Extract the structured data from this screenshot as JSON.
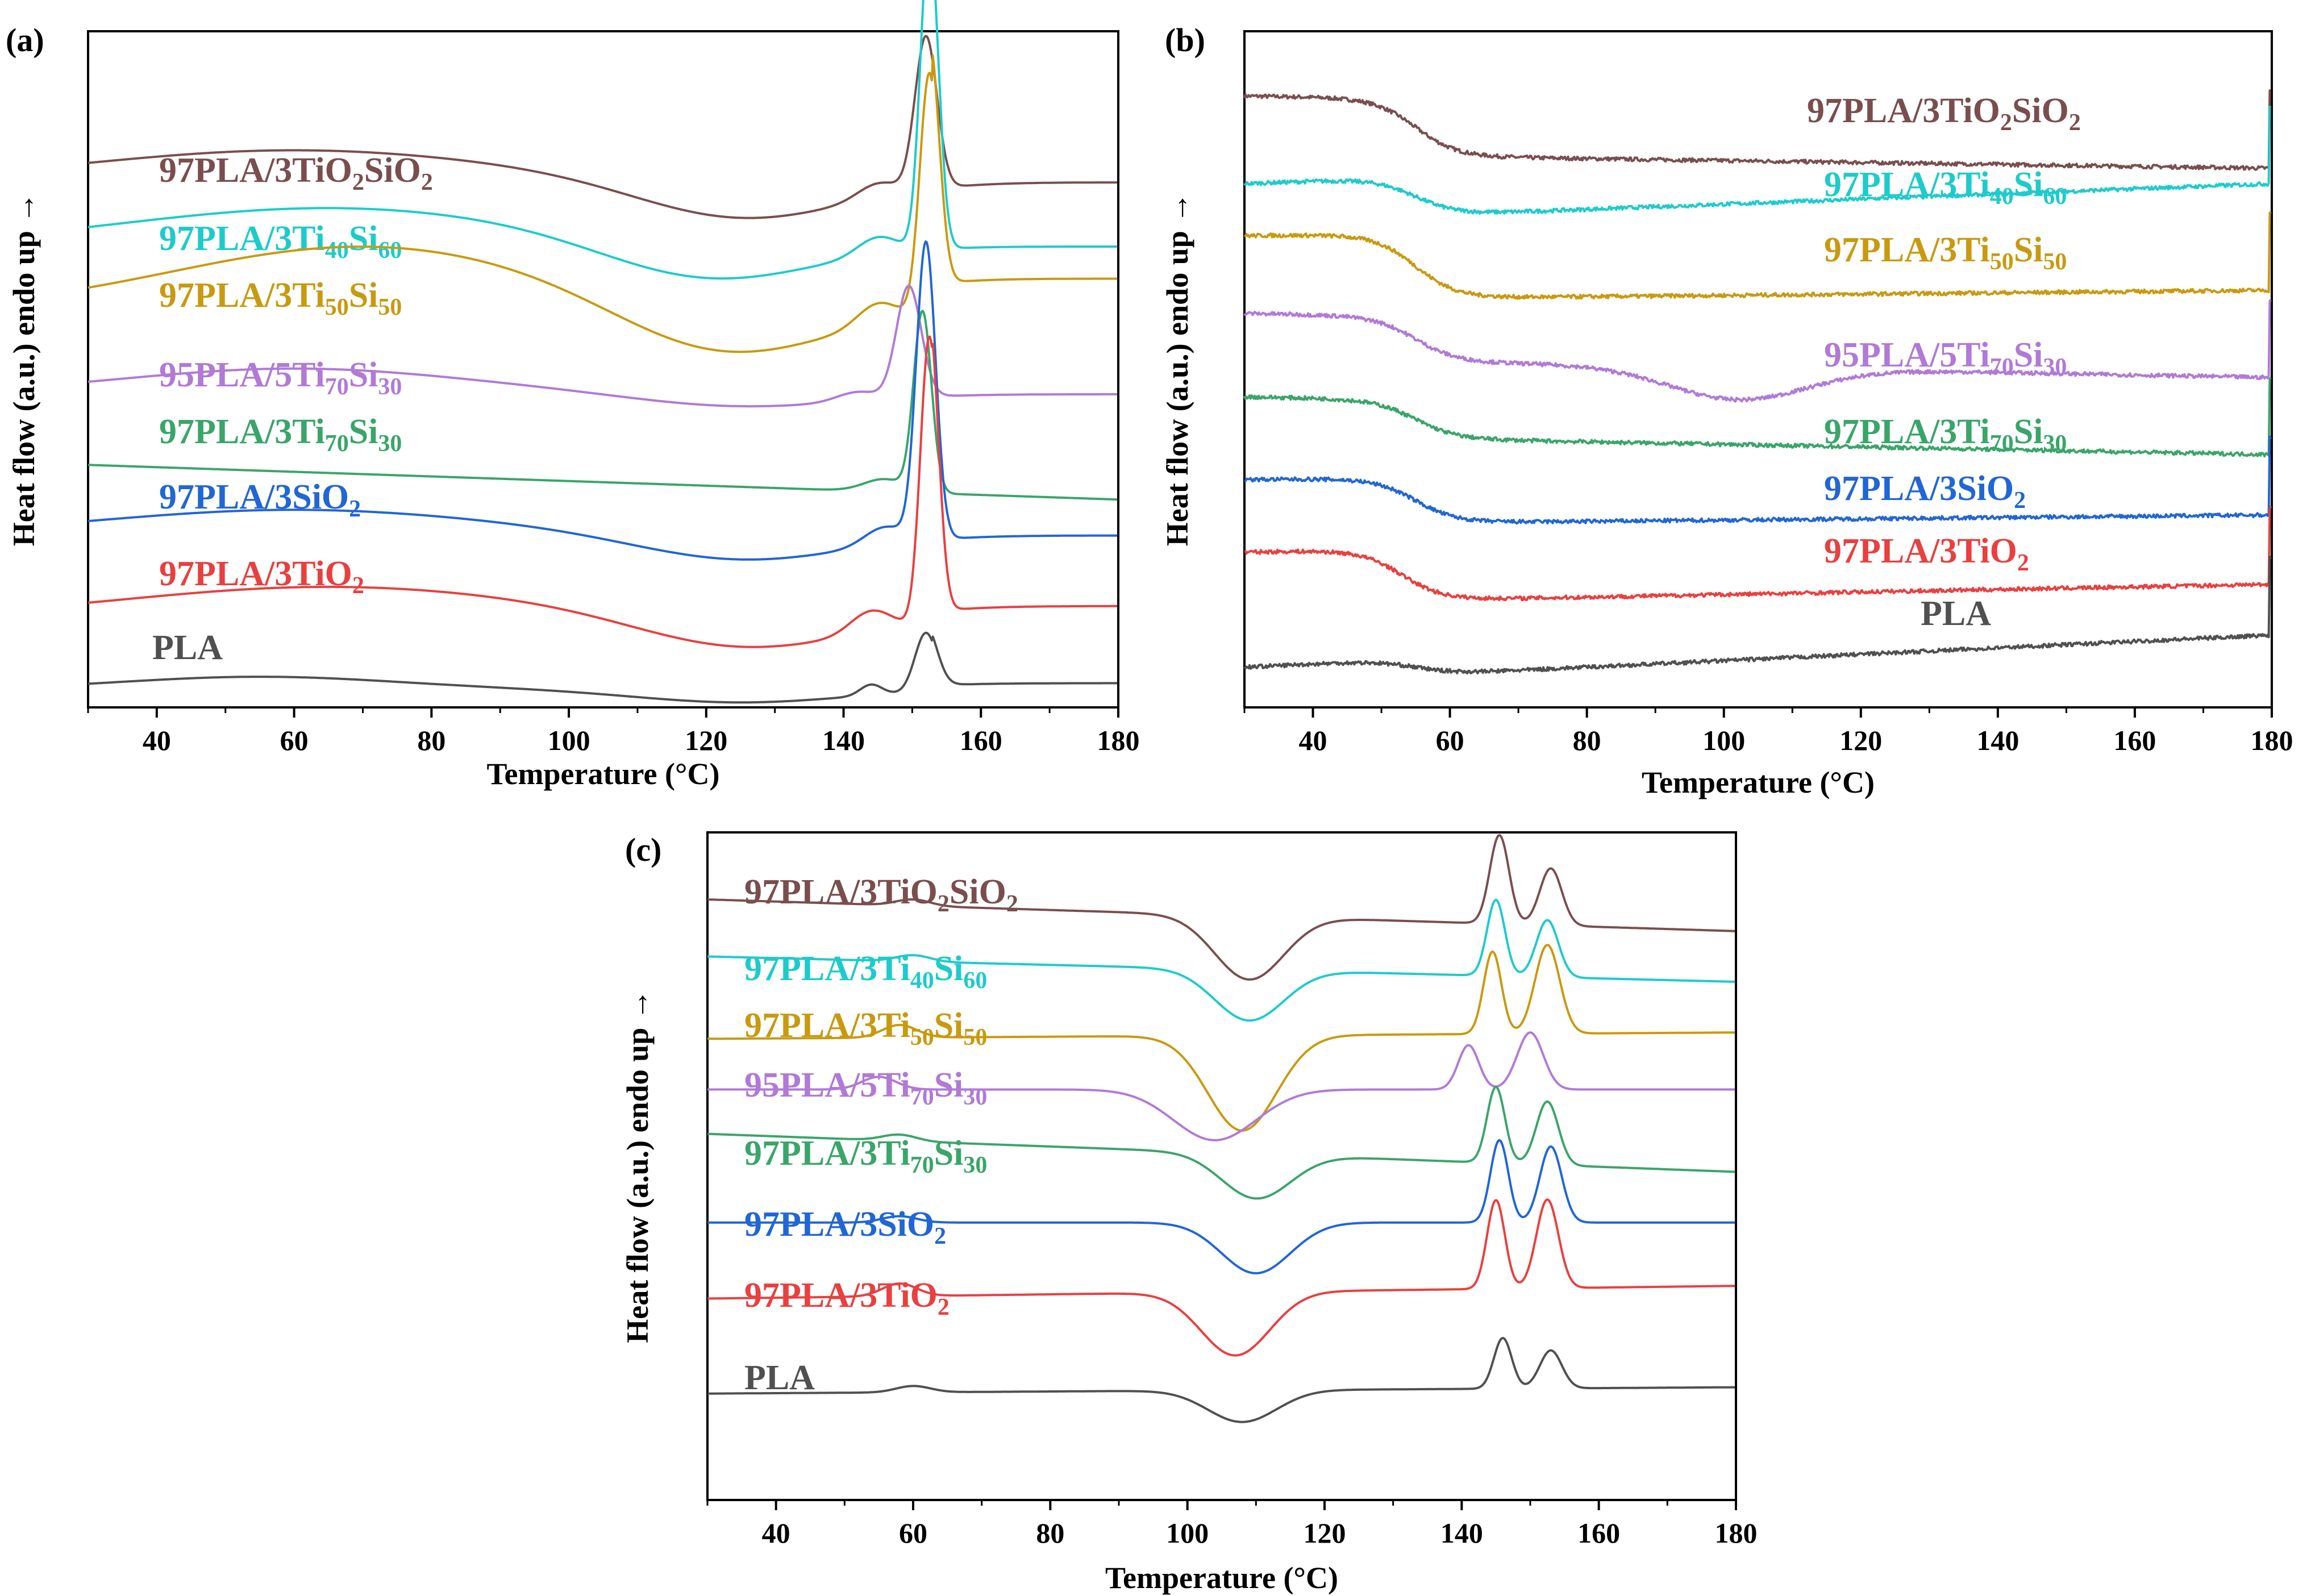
{
  "figure": {
    "colors": {
      "97PLA/3TiO2SiO2": "#7a4e4e",
      "97PLA/3Ti40Si60": "#1ecbcb",
      "97PLA/3Ti50Si50": "#c89a10",
      "95PLA/5Ti70Si30": "#b07ad6",
      "97PLA/3Ti70Si30": "#3aa56a",
      "97PLA/3SiO2": "#2166d4",
      "97PLA/3TiO2": "#e84040",
      "PLA": "#505050"
    }
  },
  "chart_data": [
    {
      "id": "a",
      "panel_label": "(a)",
      "type": "line",
      "xlabel": "Temperature (°C)",
      "ylabel": "Heat flow (a.u.) endo up",
      "ylabel_arrow": "→",
      "xlim": [
        30,
        180
      ],
      "xticks": [
        40,
        60,
        80,
        100,
        120,
        140,
        160,
        180
      ],
      "xtick_labels": [
        "40",
        "60",
        "80",
        "100",
        "120",
        "140",
        "160",
        "180"
      ],
      "series": [
        {
          "name": "97PLA/3TiO2SiO2",
          "label_main": [
            "97PLA/3TiO",
            "SiO"
          ],
          "label_sub": [
            "2",
            "2"
          ],
          "baseline": 0.8,
          "hump": [
            0.05,
            60,
            30
          ],
          "dip": [
            0.06,
            125,
            15
          ],
          "peaks": [
            [
              0.85,
              152,
              1.6
            ],
            [
              0.08,
              145,
              3
            ]
          ],
          "end": 0.0
        },
        {
          "name": "97PLA/3Ti40Si60",
          "label_main": [
            "97PLA/3Ti",
            "Si"
          ],
          "label_sub": [
            "40",
            "60"
          ],
          "baseline": 0.7,
          "hump": [
            0.06,
            65,
            30
          ],
          "dip": [
            0.06,
            120,
            15
          ],
          "peaks": [
            [
              1.75,
              152.5,
              1.3
            ],
            [
              0.1,
              145,
              3
            ]
          ],
          "end": 0.0
        },
        {
          "name": "97PLA/3Ti50Si50",
          "label_main": [
            "97PLA/3Ti",
            "Si"
          ],
          "label_sub": [
            "50",
            "50"
          ],
          "baseline": 0.6,
          "hump": [
            0.1,
            70,
            28
          ],
          "dip": [
            0.08,
            122,
            15
          ],
          "peaks": [
            [
              1.35,
              152.5,
              1.4
            ],
            [
              0.12,
              145,
              3
            ]
          ],
          "end": 0.05
        },
        {
          "name": "95PLA/5Ti70Si30",
          "label_main": [
            "95PLA/5Ti",
            "Si"
          ],
          "label_sub": [
            "70",
            "30"
          ],
          "baseline": 0.47,
          "hump": [
            0.04,
            60,
            25
          ],
          "dip": [
            0.02,
            125,
            15
          ],
          "peaks": [
            [
              0.62,
              149.5,
              1.8
            ],
            [
              0.05,
              142,
              3
            ]
          ],
          "end": 0.0
        },
        {
          "name": "97PLA/3Ti70Si30",
          "label_main": [
            "97PLA/3Ti",
            "Si"
          ],
          "label_sub": [
            "70",
            "30"
          ],
          "baseline": 0.36,
          "hump": [
            0.0,
            60,
            25
          ],
          "dip": [
            0.0,
            125,
            15
          ],
          "peaks": [
            [
              1.0,
              151.5,
              1.3
            ],
            [
              0.07,
              146,
              3
            ]
          ],
          "end": 0.0,
          "slope": 0.0012
        },
        {
          "name": "97PLA/3SiO2",
          "label_main": [
            "97PLA/3SiO"
          ],
          "label_sub": [
            "2"
          ],
          "baseline": 0.25,
          "hump": [
            0.04,
            60,
            28
          ],
          "dip": [
            0.04,
            125,
            15
          ],
          "peaks": [
            [
              1.65,
              152,
              1.4
            ],
            [
              0.1,
              146,
              3
            ]
          ],
          "end": 0.0
        },
        {
          "name": "97PLA/3TiO2",
          "label_main": [
            "97PLA/3TiO"
          ],
          "label_sub": [
            "2"
          ],
          "baseline": 0.12,
          "hump": [
            0.05,
            65,
            30
          ],
          "dip": [
            0.05,
            125,
            15
          ],
          "peaks": [
            [
              1.6,
              152.5,
              1.3
            ],
            [
              0.12,
              144,
              3
            ]
          ],
          "end": 0.02
        },
        {
          "name": "PLA",
          "label_main": [
            "PLA"
          ],
          "label_sub": [],
          "baseline": 0.01,
          "hump": [
            0.02,
            55,
            20
          ],
          "dip": [
            0.02,
            125,
            15
          ],
          "peaks": [
            [
              0.33,
              152,
              1.6
            ],
            [
              0.06,
              144,
              1.6
            ]
          ],
          "end": 0.01
        }
      ]
    },
    {
      "id": "b",
      "panel_label": "(b)",
      "type": "line",
      "xlabel": "Temperature (°C)",
      "ylabel": "Heat flow (a.u.) endo up",
      "ylabel_arrow": "→",
      "xlim": [
        30,
        180
      ],
      "xticks": [
        40,
        60,
        80,
        100,
        120,
        140,
        160,
        180
      ],
      "xtick_labels": [
        "40",
        "60",
        "80",
        "100",
        "120",
        "140",
        "160",
        "180"
      ],
      "series": [
        {
          "name": "97PLA/3TiO2SiO2",
          "label_main": [
            "97PLA/3TiO",
            "SiO"
          ],
          "label_sub": [
            "2",
            "2"
          ],
          "start": 0.93,
          "step": 0.09,
          "step_at": 55,
          "slope": -0.00015,
          "dip": [
            0.0,
            100,
            10
          ]
        },
        {
          "name": "97PLA/3Ti40Si60",
          "label_main": [
            "97PLA/3Ti",
            "Si"
          ],
          "label_sub": [
            "40",
            "60"
          ],
          "start": 0.81,
          "step": 0.06,
          "step_at": 55,
          "slope": 0.0004,
          "dip": [
            0.0,
            100,
            10
          ]
        },
        {
          "name": "97PLA/3Ti50Si50",
          "label_main": [
            "97PLA/3Ti",
            "Si"
          ],
          "label_sub": [
            "50",
            "50"
          ],
          "start": 0.72,
          "step": 0.1,
          "step_at": 55,
          "slope": 0.0001,
          "dip": [
            0.0,
            100,
            10
          ]
        },
        {
          "name": "95PLA/5Ti70Si30",
          "label_main": [
            "95PLA/5Ti",
            "Si"
          ],
          "label_sub": [
            "70",
            "30"
          ],
          "start": 0.59,
          "step": 0.07,
          "step_at": 55,
          "slope": -0.0002,
          "dip": [
            0.05,
            102,
            10
          ]
        },
        {
          "name": "97PLA/3Ti70Si30",
          "label_main": [
            "97PLA/3Ti",
            "Si"
          ],
          "label_sub": [
            "70",
            "30"
          ],
          "start": 0.46,
          "step": 0.06,
          "step_at": 55,
          "slope": -0.0002,
          "dip": [
            0.0,
            100,
            10
          ]
        },
        {
          "name": "97PLA/3SiO2",
          "label_main": [
            "97PLA/3SiO"
          ],
          "label_sub": [
            "2"
          ],
          "start": 0.34,
          "step": 0.07,
          "step_at": 55,
          "slope": 0.0001,
          "dip": [
            0.0,
            100,
            10
          ]
        },
        {
          "name": "97PLA/3TiO2",
          "label_main": [
            "97PLA/3TiO"
          ],
          "label_sub": [
            "2"
          ],
          "start": 0.23,
          "step": 0.08,
          "step_at": 53,
          "slope": 0.0002,
          "dip": [
            0.0,
            100,
            10
          ]
        },
        {
          "name": "PLA",
          "label_main": [
            "PLA"
          ],
          "label_sub": [],
          "start": 0.06,
          "step": 0.025,
          "step_at": 55,
          "slope": 0.0005,
          "dip": [
            0.0,
            100,
            10
          ]
        }
      ]
    },
    {
      "id": "c",
      "panel_label": "(c)",
      "type": "line",
      "xlabel": "Temperature (°C)",
      "ylabel": "Heat flow (a.u.) endo up",
      "ylabel_arrow": "→",
      "xlim": [
        30,
        180
      ],
      "xticks": [
        40,
        60,
        80,
        100,
        120,
        140,
        160,
        180
      ],
      "xtick_labels": [
        "40",
        "60",
        "80",
        "100",
        "120",
        "140",
        "160",
        "180"
      ],
      "series": [
        {
          "name": "97PLA/3TiO2SiO2",
          "label_main": [
            "97PLA/3TiO",
            "SiO"
          ],
          "label_sub": [
            "2",
            "2"
          ],
          "start": 0.93,
          "end": 0.88,
          "tg": [
            0.01,
            60
          ],
          "cold": [
            0.1,
            109,
            5
          ],
          "peaks": [
            [
              0.14,
              145.5,
              1.4
            ],
            [
              0.09,
              153,
              1.6
            ]
          ]
        },
        {
          "name": "97PLA/3Ti40Si60",
          "label_main": [
            "97PLA/3Ti",
            "Si"
          ],
          "label_sub": [
            "40",
            "60"
          ],
          "start": 0.84,
          "end": 0.8,
          "tg": [
            0.01,
            60
          ],
          "cold": [
            0.08,
            109,
            5
          ],
          "peaks": [
            [
              0.12,
              145,
              1.3
            ],
            [
              0.09,
              152.5,
              1.6
            ]
          ]
        },
        {
          "name": "97PLA/3Ti50Si50",
          "label_main": [
            "97PLA/3Ti",
            "Si"
          ],
          "label_sub": [
            "50",
            "50"
          ],
          "start": 0.71,
          "end": 0.72,
          "tg": [
            0.02,
            58
          ],
          "cold": [
            0.15,
            108,
            5
          ],
          "peaks": [
            [
              0.13,
              144.5,
              1.3
            ],
            [
              0.14,
              152.5,
              1.8
            ]
          ]
        },
        {
          "name": "95PLA/5Ti70Si30",
          "label_main": [
            "95PLA/5Ti",
            "Si"
          ],
          "label_sub": [
            "70",
            "30"
          ],
          "start": 0.63,
          "end": 0.63,
          "tg": [
            0.02,
            55
          ],
          "cold": [
            0.08,
            104,
            6
          ],
          "peaks": [
            [
              0.07,
              141,
              1.5
            ],
            [
              0.09,
              150,
              1.9
            ]
          ]
        },
        {
          "name": "97PLA/3Ti70Si30",
          "label_main": [
            "97PLA/3Ti",
            "Si"
          ],
          "label_sub": [
            "70",
            "30"
          ],
          "start": 0.56,
          "end": 0.5,
          "tg": [
            0.01,
            58
          ],
          "cold": [
            0.07,
            110,
            5
          ],
          "peaks": [
            [
              0.12,
              145,
              1.3
            ],
            [
              0.1,
              152.5,
              1.6
            ]
          ]
        },
        {
          "name": "97PLA/3SiO2",
          "label_main": [
            "97PLA/3SiO"
          ],
          "label_sub": [
            "2"
          ],
          "start": 0.42,
          "end": 0.42,
          "tg": [
            0.01,
            58
          ],
          "cold": [
            0.08,
            110,
            5
          ],
          "peaks": [
            [
              0.13,
              145.5,
              1.3
            ],
            [
              0.12,
              153,
              1.6
            ]
          ]
        },
        {
          "name": "97PLA/3TiO2",
          "label_main": [
            "97PLA/3TiO"
          ],
          "label_sub": [
            "2"
          ],
          "start": 0.3,
          "end": 0.32,
          "tg": [
            0.02,
            58
          ],
          "cold": [
            0.1,
            107,
            5
          ],
          "peaks": [
            [
              0.14,
              145,
              1.3
            ],
            [
              0.14,
              152.5,
              1.6
            ]
          ]
        },
        {
          "name": "PLA",
          "label_main": [
            "PLA"
          ],
          "label_sub": [],
          "start": 0.15,
          "end": 0.16,
          "tg": [
            0.01,
            60
          ],
          "cold": [
            0.05,
            108,
            5
          ],
          "peaks": [
            [
              0.08,
              146,
              1.3
            ],
            [
              0.06,
              153,
              1.6
            ]
          ]
        }
      ]
    }
  ]
}
